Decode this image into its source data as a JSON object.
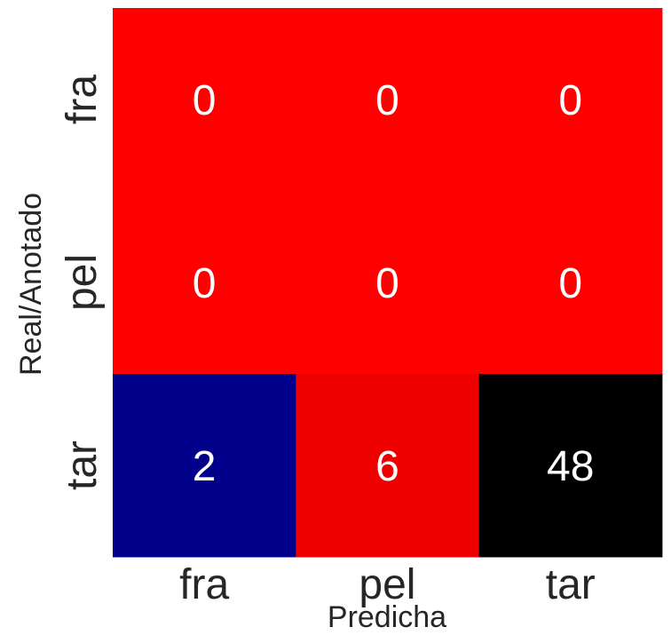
{
  "chart_data": {
    "type": "heatmap",
    "title": "",
    "xlabel": "Predicha",
    "ylabel": "Real/Anotado",
    "x_categories": [
      "fra",
      "pel",
      "tar"
    ],
    "y_categories": [
      "fra",
      "pel",
      "tar"
    ],
    "values": [
      [
        0,
        0,
        0
      ],
      [
        0,
        0,
        0
      ],
      [
        2,
        6,
        48
      ]
    ],
    "colors": [
      [
        "#ff0000",
        "#ff0000",
        "#ff0000"
      ],
      [
        "#ff0000",
        "#ff0000",
        "#ff0000"
      ],
      [
        "#00008b",
        "#ee0000",
        "#000000"
      ]
    ],
    "colorbar": false,
    "grid": false
  }
}
